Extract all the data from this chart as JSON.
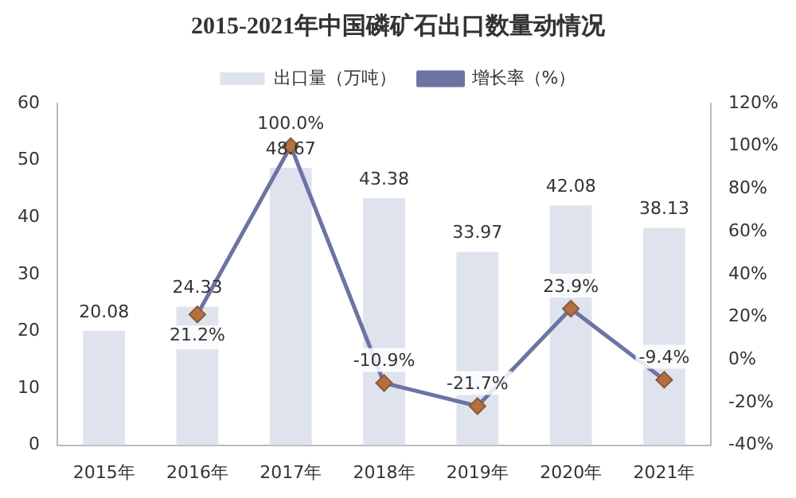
{
  "chart_data": {
    "type": "bar",
    "title": "2015-2021年中国磷矿石出口数量动情况",
    "categories": [
      "2015年",
      "2016年",
      "2017年",
      "2018年",
      "2019年",
      "2020年",
      "2021年"
    ],
    "series": [
      {
        "name": "出口量（万吨）",
        "color": "#dfe3ed",
        "values": [
          20.08,
          24.33,
          48.67,
          43.38,
          33.97,
          42.08,
          38.13
        ],
        "value_labels": [
          "20.08",
          "24.33",
          "48.67",
          "43.38",
          "33.97",
          "42.08",
          "38.13"
        ]
      },
      {
        "name": "增长率（%）",
        "type": "line",
        "axis": "y2",
        "color": "#6b74a3",
        "values": [
          null,
          21.2,
          100.0,
          -10.9,
          -21.7,
          23.9,
          -9.4
        ],
        "value_labels": [
          null,
          "21.2%",
          "100.0%",
          "-10.9%",
          "-21.7%",
          "23.9%",
          "-9.4%"
        ]
      }
    ],
    "ylim": [
      0,
      60
    ],
    "yticks": [
      0,
      10,
      20,
      30,
      40,
      50,
      60
    ],
    "y2lim": [
      -40,
      120
    ],
    "y2ticks": [
      {
        "value": -40,
        "label": "-40%"
      },
      {
        "value": -20,
        "label": "-20%"
      },
      {
        "value": 0,
        "label": "0%"
      },
      {
        "value": 20,
        "label": "20%"
      },
      {
        "value": 40,
        "label": "40%"
      },
      {
        "value": 60,
        "label": "60%"
      },
      {
        "value": 80,
        "label": "80%"
      },
      {
        "value": 100,
        "label": "100%"
      },
      {
        "value": 120,
        "label": "120%"
      }
    ],
    "marker": "diamond",
    "legend": "top",
    "grid": false
  }
}
